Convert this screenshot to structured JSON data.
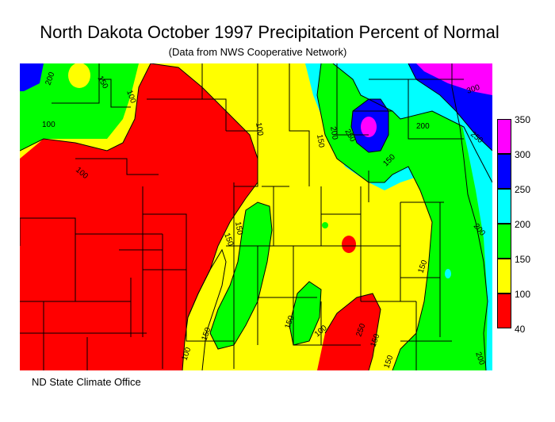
{
  "title": "North Dakota October 1997 Precipitation Percent of Normal",
  "subtitle": "(Data from NWS Cooperative Network)",
  "footer": "ND State Climate Office",
  "colors": {
    "red": "#ff0000",
    "yellow": "#ffff00",
    "green": "#00ff00",
    "cyan": "#00ffff",
    "blue": "#0000ff",
    "magenta": "#ff00ff"
  },
  "legend": {
    "ticks": [
      "350",
      "300",
      "250",
      "200",
      "150",
      "100",
      "40"
    ]
  },
  "contours": {
    "l1": "200",
    "l2": "150",
    "l3": "100",
    "l4": "100",
    "l5": "100",
    "l6": "250",
    "l7": "200",
    "l8": "150",
    "l9": "150",
    "l10": "250",
    "l11": "200",
    "l12": "300",
    "l13": "250",
    "l14": "200",
    "l15": "150",
    "l16": "150",
    "l17": "150",
    "l18": "150",
    "l19": "100",
    "l20": "150",
    "l21": "100",
    "l22": "150",
    "l23": "200",
    "l24": "150"
  }
}
